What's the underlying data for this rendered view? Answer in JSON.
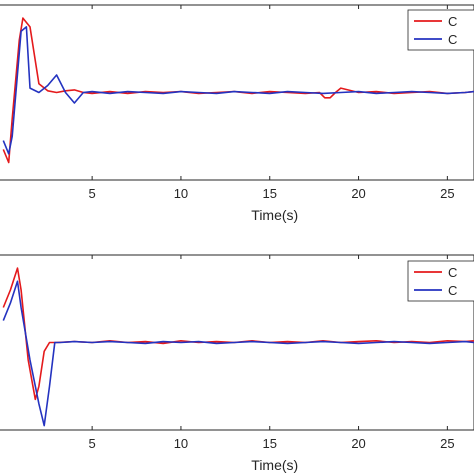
{
  "chart_data": [
    {
      "type": "line",
      "xlabel": "Time(s)",
      "ylabel": "",
      "xlim": [
        -0.3,
        26.5
      ],
      "ylim": [
        -1.0,
        1.0
      ],
      "xticks": [
        5,
        10,
        15,
        20,
        25
      ],
      "xtick_labels": [
        "5",
        "10",
        "15",
        "20",
        "25"
      ],
      "grid": false,
      "legend_position": "top-right",
      "series": [
        {
          "name": "C",
          "color": "#e41a1c",
          "x": [
            0,
            0.3,
            0.5,
            0.9,
            1.1,
            1.5,
            2.0,
            2.5,
            3.0,
            3.5,
            4.0,
            4.5,
            5.0,
            6.0,
            7.0,
            8.0,
            9.0,
            10.0,
            11.0,
            12.0,
            13.0,
            14.0,
            15.0,
            16.0,
            17.0,
            17.8,
            18.1,
            18.4,
            18.7,
            19.0,
            20.0,
            21.0,
            22.0,
            23.0,
            24.0,
            25.0,
            26.0,
            26.5
          ],
          "y": [
            -0.65,
            -0.8,
            -0.3,
            0.6,
            0.85,
            0.75,
            0.1,
            0.02,
            0.0,
            0.02,
            0.03,
            0.0,
            -0.01,
            0.01,
            -0.01,
            0.01,
            0.0,
            0.01,
            -0.01,
            0.0,
            0.01,
            -0.01,
            0.01,
            0.0,
            -0.01,
            0.0,
            -0.06,
            -0.06,
            0.0,
            0.05,
            0.0,
            0.01,
            -0.01,
            0.0,
            0.01,
            -0.01,
            0.0,
            0.01
          ]
        },
        {
          "name": "C",
          "color": "#2433c0",
          "x": [
            0,
            0.3,
            0.5,
            1.0,
            1.3,
            1.5,
            2.0,
            2.5,
            3.0,
            3.5,
            4.0,
            4.5,
            5.0,
            6.0,
            7.0,
            8.0,
            9.0,
            10.0,
            11.0,
            12.0,
            13.0,
            14.0,
            15.0,
            16.0,
            17.0,
            18.0,
            19.0,
            20.0,
            21.0,
            22.0,
            23.0,
            24.0,
            25.0,
            26.0,
            26.5
          ],
          "y": [
            -0.55,
            -0.7,
            -0.5,
            0.7,
            0.75,
            0.05,
            0.0,
            0.08,
            0.2,
            0.0,
            -0.12,
            0.0,
            0.01,
            -0.01,
            0.01,
            0.0,
            -0.01,
            0.01,
            0.0,
            -0.01,
            0.01,
            0.0,
            -0.01,
            0.01,
            0.0,
            -0.01,
            0.0,
            0.01,
            -0.01,
            0.0,
            0.01,
            0.0,
            -0.01,
            0.0,
            0.01
          ]
        }
      ]
    },
    {
      "type": "line",
      "xlabel": "Time(s)",
      "ylabel": "",
      "xlim": [
        -0.3,
        26.5
      ],
      "ylim": [
        -1.0,
        1.0
      ],
      "xticks": [
        5,
        10,
        15,
        20,
        25
      ],
      "xtick_labels": [
        "5",
        "10",
        "15",
        "20",
        "25"
      ],
      "grid": false,
      "legend_position": "top-right",
      "series": [
        {
          "name": "C",
          "color": "#e41a1c",
          "x": [
            0,
            0.4,
            0.8,
            1.0,
            1.4,
            1.8,
            2.0,
            2.3,
            2.6,
            3.0,
            4.0,
            5.0,
            6.0,
            7.0,
            8.0,
            9.0,
            10.0,
            11.0,
            12.0,
            13.0,
            14.0,
            15.0,
            16.0,
            17.0,
            18.0,
            19.0,
            20.0,
            21.0,
            22.0,
            23.0,
            24.0,
            25.0,
            26.0,
            26.5
          ],
          "y": [
            0.4,
            0.6,
            0.85,
            0.6,
            -0.2,
            -0.65,
            -0.5,
            -0.1,
            0.0,
            0.0,
            0.01,
            0.0,
            0.02,
            0.0,
            0.01,
            -0.01,
            0.02,
            0.0,
            0.01,
            0.0,
            0.02,
            0.0,
            0.01,
            0.0,
            0.02,
            0.0,
            0.01,
            0.02,
            0.0,
            0.01,
            0.0,
            0.02,
            0.01,
            0.02
          ]
        },
        {
          "name": "C",
          "color": "#2433c0",
          "x": [
            0,
            0.4,
            0.8,
            1.0,
            1.5,
            2.0,
            2.3,
            2.6,
            2.9,
            3.2,
            4.0,
            5.0,
            6.0,
            7.0,
            8.0,
            9.0,
            10.0,
            11.0,
            12.0,
            13.0,
            14.0,
            15.0,
            16.0,
            17.0,
            18.0,
            19.0,
            20.0,
            21.0,
            22.0,
            23.0,
            24.0,
            25.0,
            26.0,
            26.5
          ],
          "y": [
            0.25,
            0.45,
            0.7,
            0.4,
            -0.2,
            -0.7,
            -0.95,
            -0.5,
            0.0,
            0.0,
            0.01,
            0.0,
            0.01,
            0.0,
            -0.01,
            0.01,
            0.0,
            0.01,
            -0.01,
            0.0,
            0.01,
            0.0,
            -0.01,
            0.0,
            0.01,
            0.0,
            -0.01,
            0.0,
            0.01,
            0.0,
            -0.01,
            0.0,
            0.01,
            0.0
          ]
        }
      ]
    }
  ]
}
